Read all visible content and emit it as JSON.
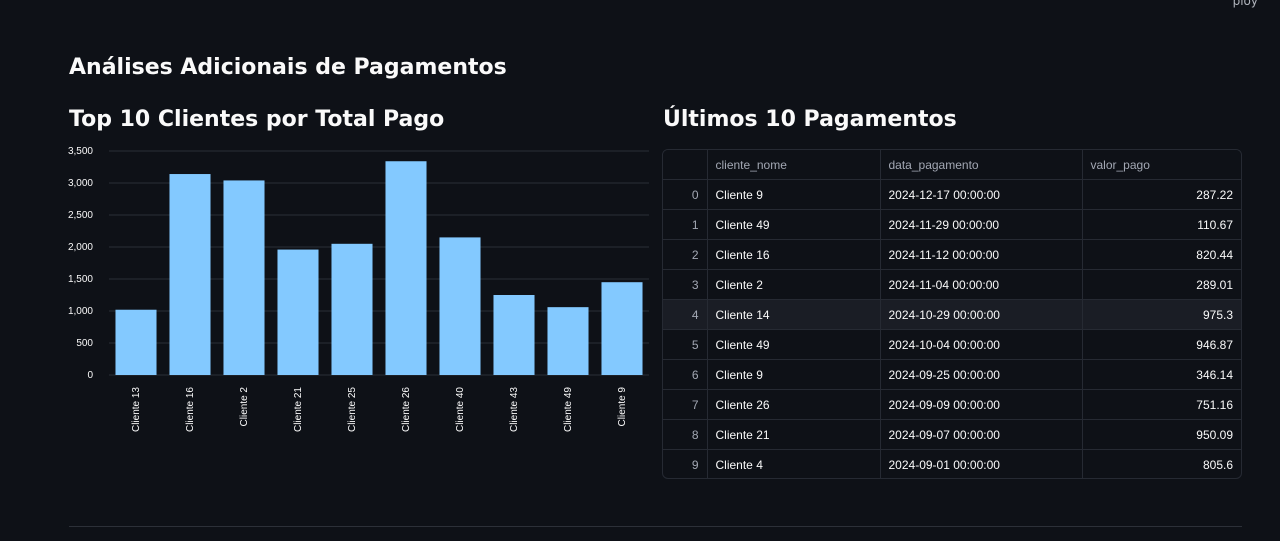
{
  "header": {
    "corner_text": "ploy"
  },
  "page": {
    "title": "Análises Adicionais de Pagamentos"
  },
  "chart_section": {
    "title": "Top 10 Clientes por Total Pago"
  },
  "table_section": {
    "title": "Últimos 10 Pagamentos",
    "columns": [
      "",
      "cliente_nome",
      "data_pagamento",
      "valor_pago"
    ],
    "rows": [
      {
        "index": "0",
        "cliente_nome": "Cliente 9",
        "data_pagamento": "2024-12-17 00:00:00",
        "valor_pago": "287.22"
      },
      {
        "index": "1",
        "cliente_nome": "Cliente 49",
        "data_pagamento": "2024-11-29 00:00:00",
        "valor_pago": "110.67"
      },
      {
        "index": "2",
        "cliente_nome": "Cliente 16",
        "data_pagamento": "2024-11-12 00:00:00",
        "valor_pago": "820.44"
      },
      {
        "index": "3",
        "cliente_nome": "Cliente 2",
        "data_pagamento": "2024-11-04 00:00:00",
        "valor_pago": "289.01"
      },
      {
        "index": "4",
        "cliente_nome": "Cliente 14",
        "data_pagamento": "2024-10-29 00:00:00",
        "valor_pago": "975.3"
      },
      {
        "index": "5",
        "cliente_nome": "Cliente 49",
        "data_pagamento": "2024-10-04 00:00:00",
        "valor_pago": "946.87"
      },
      {
        "index": "6",
        "cliente_nome": "Cliente 9",
        "data_pagamento": "2024-09-25 00:00:00",
        "valor_pago": "346.14"
      },
      {
        "index": "7",
        "cliente_nome": "Cliente 26",
        "data_pagamento": "2024-09-09 00:00:00",
        "valor_pago": "751.16"
      },
      {
        "index": "8",
        "cliente_nome": "Cliente 21",
        "data_pagamento": "2024-09-07 00:00:00",
        "valor_pago": "950.09"
      },
      {
        "index": "9",
        "cliente_nome": "Cliente 4",
        "data_pagamento": "2024-09-01 00:00:00",
        "valor_pago": "805.6"
      }
    ],
    "highlighted_row": 4
  },
  "colors": {
    "background": "#0e1117",
    "bar": "#83c9ff",
    "grid": "#2a2e37",
    "tick_text": "#fafafa"
  },
  "chart_data": {
    "type": "bar",
    "categories": [
      "Cliente 13",
      "Cliente 16",
      "Cliente 2",
      "Cliente 21",
      "Cliente 25",
      "Cliente 26",
      "Cliente 40",
      "Cliente 43",
      "Cliente 49",
      "Cliente 9"
    ],
    "values": [
      1020,
      3140,
      3040,
      1960,
      2050,
      3340,
      2150,
      1250,
      1060,
      1450
    ],
    "yticks": [
      "0",
      "500",
      "1,000",
      "1,500",
      "2,000",
      "2,500",
      "3,000",
      "3,500"
    ],
    "ylim": [
      0,
      3500
    ],
    "grid": true,
    "xlabel": "",
    "ylabel": ""
  }
}
